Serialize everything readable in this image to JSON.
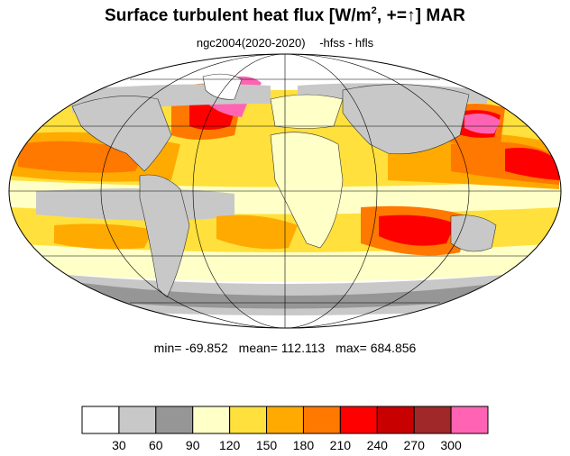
{
  "title": {
    "main": "Surface turbulent heat flux [W/m",
    "sup": "2",
    "rest": ", +=↑]  MAR"
  },
  "subtitle": {
    "run": "ngc2004(2020-2020)",
    "vars": "-hfss - hfls"
  },
  "stats": {
    "min": "min= -69.852",
    "mean": "mean= 112.113",
    "max": "max= 684.856"
  },
  "colorbar": {
    "colors": [
      "#ffffff",
      "#c8c8c8",
      "#969696",
      "#ffffc8",
      "#ffe03c",
      "#ffaa00",
      "#ff7800",
      "#ff0000",
      "#c80000",
      "#a02828",
      "#ff64b4"
    ],
    "ticks": [
      "30",
      "60",
      "90",
      "120",
      "150",
      "180",
      "210",
      "240",
      "270",
      "300"
    ]
  }
}
